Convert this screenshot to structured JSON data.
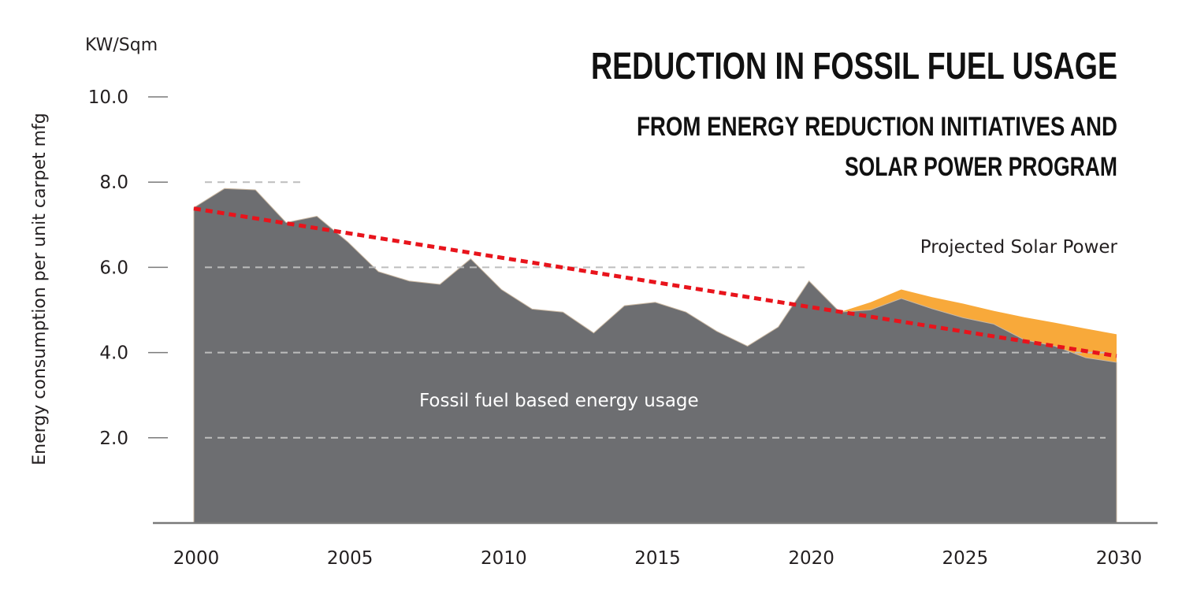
{
  "chart_data": {
    "type": "area",
    "title": "REDUCTION IN FOSSIL FUEL USAGE",
    "subtitle_lines": [
      "FROM ENERGY REDUCTION INITIATIVES AND",
      "SOLAR POWER PROGRAM"
    ],
    "unit_label": "KW/Sqm",
    "ylabel": "Energy consumption per unit carpet mfg",
    "xlabel": "",
    "ylim": [
      0,
      10.0
    ],
    "xlim": [
      2000,
      2030
    ],
    "y_ticks": [
      "2.0",
      "4.0",
      "6.0",
      "8.0",
      "10.0"
    ],
    "y_tick_values": [
      2,
      4,
      6,
      8,
      10
    ],
    "x_ticks": [
      "2000",
      "2005",
      "2010",
      "2015",
      "2020",
      "2025",
      "2030"
    ],
    "x_tick_values": [
      2000,
      2005,
      2010,
      2015,
      2020,
      2025,
      2030
    ],
    "grid": "dashed horizontal",
    "series": [
      {
        "name": "Fossil fuel based energy usage",
        "color": "#6d6e71",
        "x": [
          2000,
          2001,
          2002,
          2003,
          2004,
          2005,
          2006,
          2007,
          2008,
          2009,
          2010,
          2011,
          2012,
          2013,
          2014,
          2015,
          2016,
          2017,
          2018,
          2019,
          2020,
          2021,
          2022,
          2023,
          2024,
          2025,
          2026,
          2027,
          2028,
          2029,
          2030
        ],
        "values": [
          7.4,
          7.85,
          7.82,
          7.05,
          7.2,
          6.6,
          5.9,
          5.68,
          5.6,
          6.2,
          5.48,
          5.02,
          4.95,
          4.46,
          5.1,
          5.18,
          4.95,
          4.5,
          4.15,
          4.6,
          5.68,
          4.95,
          5.0,
          5.27,
          5.03,
          4.82,
          4.67,
          4.3,
          4.15,
          3.88,
          3.77
        ]
      },
      {
        "name": "Projected Solar Power",
        "color": "#f8a93a",
        "x": [
          2021,
          2022,
          2023,
          2024,
          2025,
          2026,
          2027,
          2028,
          2029,
          2030
        ],
        "values": [
          4.95,
          5.18,
          5.48,
          5.3,
          5.15,
          4.98,
          4.83,
          4.7,
          4.56,
          4.43
        ]
      }
    ],
    "trend_line": {
      "color": "#e8141c",
      "x": [
        2000,
        2030
      ],
      "values": [
        7.38,
        3.92
      ]
    },
    "legend": "inline labels"
  }
}
